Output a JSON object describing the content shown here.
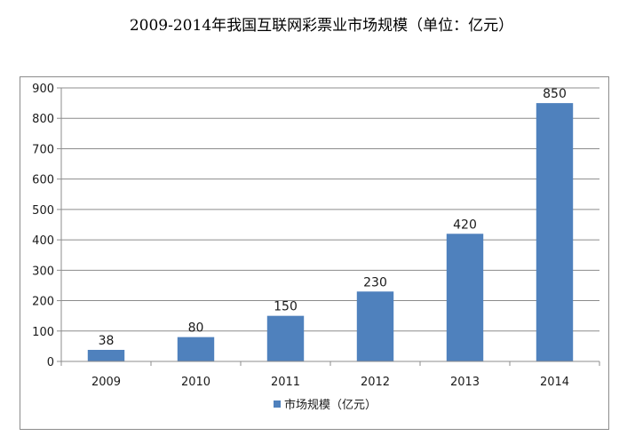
{
  "title": "2009-2014年我国互联网彩票业市场规模（单位：亿元）",
  "chart_data": {
    "type": "bar",
    "title": "2009-2014年我国互联网彩票业市场规模（单位：亿元）",
    "categories": [
      "2009",
      "2010",
      "2011",
      "2012",
      "2013",
      "2014"
    ],
    "series": [
      {
        "name": "市场规模（亿元）",
        "values": [
          38,
          80,
          150,
          230,
          420,
          850
        ],
        "color": "#4f81bd"
      }
    ],
    "ylim": [
      0,
      900
    ],
    "yticks": [
      0,
      100,
      200,
      300,
      400,
      500,
      600,
      700,
      800,
      900
    ],
    "grid": true,
    "gridColor": "#8c8c8c",
    "legend": "bottom",
    "xlabel": "",
    "ylabel": ""
  }
}
